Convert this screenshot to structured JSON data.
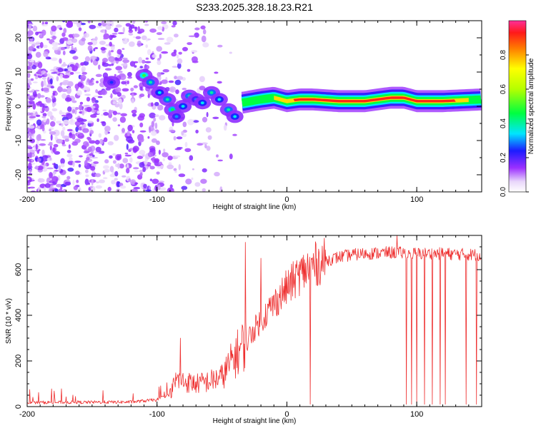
{
  "title": "S233.2025.328.18.23.R21",
  "chart_data": [
    {
      "type": "heatmap",
      "name": "spectrogram",
      "xlabel": "Height of straight line (km)",
      "ylabel": "Frequency (Hz)",
      "xlim": [
        -200,
        150
      ],
      "ylim": [
        -25,
        25
      ],
      "xticks": [
        -200,
        -100,
        0,
        100
      ],
      "xtick_labels": [
        "-200",
        "-100",
        "0",
        "100"
      ],
      "yticks": [
        -20,
        -10,
        0,
        10,
        20
      ],
      "ytick_labels": [
        "-20",
        "-10",
        "0",
        "10",
        "20"
      ],
      "signal_line": {
        "x": [
          -35,
          -20,
          -10,
          0,
          10,
          20,
          40,
          60,
          80,
          90,
          100,
          120,
          150
        ],
        "y": [
          1.0,
          2.0,
          2.5,
          1.5,
          2.0,
          2.0,
          1.5,
          1.5,
          2.5,
          2.5,
          1.5,
          1.5,
          2.0
        ]
      },
      "scatter_blobs": [
        {
          "x": -110,
          "y": 9,
          "v": 0.5
        },
        {
          "x": -105,
          "y": 7,
          "v": 0.4
        },
        {
          "x": -98,
          "y": 4,
          "v": 0.35
        },
        {
          "x": -92,
          "y": 2,
          "v": 0.4
        },
        {
          "x": -88,
          "y": -1,
          "v": 0.45
        },
        {
          "x": -85,
          "y": -3,
          "v": 0.3
        },
        {
          "x": -80,
          "y": 0,
          "v": 0.35
        },
        {
          "x": -75,
          "y": 3,
          "v": 0.4
        },
        {
          "x": -70,
          "y": 2,
          "v": 0.3
        },
        {
          "x": -65,
          "y": 1,
          "v": 0.35
        },
        {
          "x": -58,
          "y": 4,
          "v": 0.4
        },
        {
          "x": -52,
          "y": 2,
          "v": 0.35
        },
        {
          "x": -45,
          "y": -1,
          "v": 0.4
        },
        {
          "x": -40,
          "y": -3,
          "v": 0.35
        },
        {
          "x": -135,
          "y": 7,
          "v": 0.25
        }
      ],
      "colorbar": {
        "label": "Normalized spectral amplitude",
        "ticks": [
          "0.0",
          "0.2",
          "0.4",
          "0.6",
          "0.8"
        ],
        "tick_values": [
          0.0,
          0.2,
          0.4,
          0.6,
          0.8
        ],
        "range": [
          0,
          1
        ]
      }
    },
    {
      "type": "line",
      "name": "snr",
      "xlabel": "Height of straight line (km)",
      "ylabel": "SNR (10 * v/v)",
      "xlim": [
        -200,
        150
      ],
      "ylim": [
        0,
        750
      ],
      "xticks": [
        -200,
        -100,
        0,
        100
      ],
      "xtick_labels": [
        "-200",
        "-100",
        "0",
        "100"
      ],
      "yticks": [
        0,
        200,
        400,
        600
      ],
      "ytick_labels": [
        "0",
        "200",
        "400",
        "600"
      ],
      "color": "#ee3030",
      "trend": {
        "x": [
          -200,
          -120,
          -100,
          -90,
          -85,
          -80,
          -70,
          -60,
          -50,
          -40,
          -30,
          -20,
          -10,
          0,
          10,
          20,
          30,
          40,
          50,
          60,
          80,
          100,
          120,
          150
        ],
        "y": [
          18,
          20,
          30,
          55,
          120,
          110,
          100,
          110,
          130,
          220,
          300,
          380,
          450,
          520,
          580,
          620,
          640,
          655,
          665,
          670,
          675,
          670,
          670,
          665
        ]
      },
      "dropouts": [
        18,
        92,
        96,
        100,
        106,
        112,
        118,
        122,
        138,
        146
      ],
      "spikes": [
        {
          "x": -32,
          "y": 720
        },
        {
          "x": -20,
          "y": 650
        },
        {
          "x": 85,
          "y": 750
        },
        {
          "x": -82,
          "y": 300
        }
      ]
    }
  ]
}
